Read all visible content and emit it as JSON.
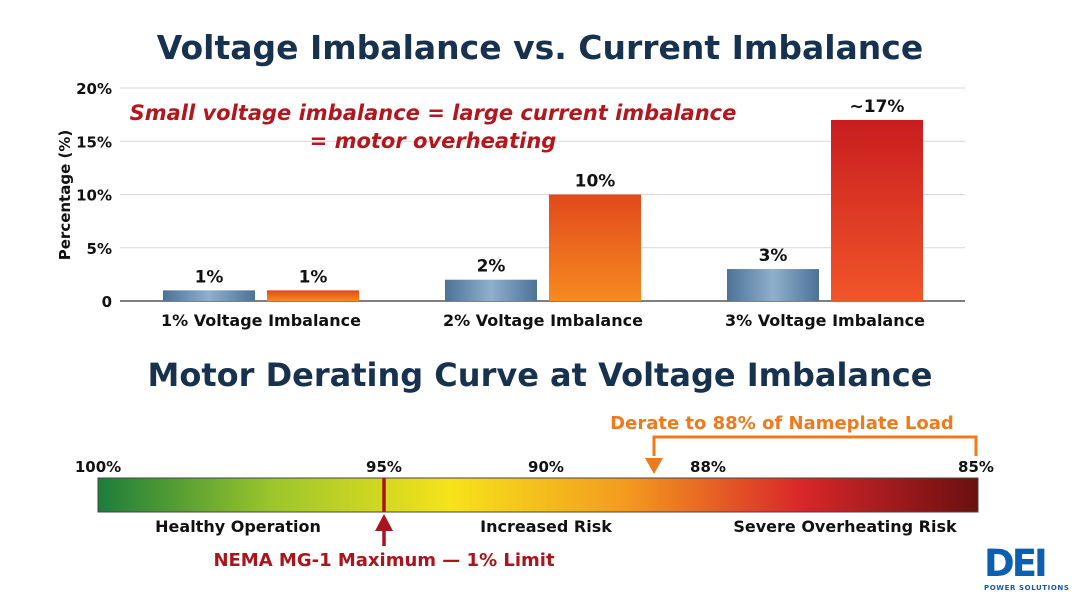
{
  "title": "Voltage Imbalance vs. Current Imbalance",
  "annotation": {
    "line1": "Small voltage imbalance = large current imbalance",
    "line2": "= motor overheating"
  },
  "chart_data": {
    "type": "bar",
    "title": "Voltage Imbalance vs. Current Imbalance",
    "xlabel": "",
    "ylabel": "Percentage (%)",
    "ylim": [
      0,
      20
    ],
    "yticks": [
      "20%",
      "15%",
      "10%",
      "5%",
      "0"
    ],
    "categories": [
      "1% Voltage Imbalance",
      "2% Voltage Imbalance",
      "3% Voltage Imbalance"
    ],
    "series": [
      {
        "values": [
          1,
          2,
          3
        ],
        "labels": [
          "1%",
          "2%",
          "3%"
        ],
        "color": "#5f86a8"
      },
      {
        "values": [
          1,
          10,
          17
        ],
        "labels": [
          "1%",
          "10%",
          "~17%"
        ],
        "color": "#e8521f"
      }
    ],
    "grid": true,
    "legend": "none"
  },
  "derating": {
    "title": "Motor Derating Curve at Voltage Imbalance",
    "callout": "Derate to 88% of Nameplate Load",
    "scale_labels": [
      "100%",
      "95%",
      "90%",
      "88%",
      "85%"
    ],
    "zones": [
      "Healthy Operation",
      "Increased Risk",
      "Severe Overheating Risk"
    ],
    "limit_label": "NEMA MG-1 Maximum — 1% Limit",
    "colors": {
      "callout": "#ee7a1e",
      "limit": "#a8151c",
      "gradient": [
        "#1c7d3a",
        "#9cc62b",
        "#f6e31a",
        "#f39a1f",
        "#d9262a",
        "#6a1010"
      ]
    }
  },
  "logo": {
    "text": "DEI",
    "subtext": "POWER SOLUTIONS"
  },
  "colors": {
    "title": "#17324f",
    "annotation": "#b3171e"
  }
}
